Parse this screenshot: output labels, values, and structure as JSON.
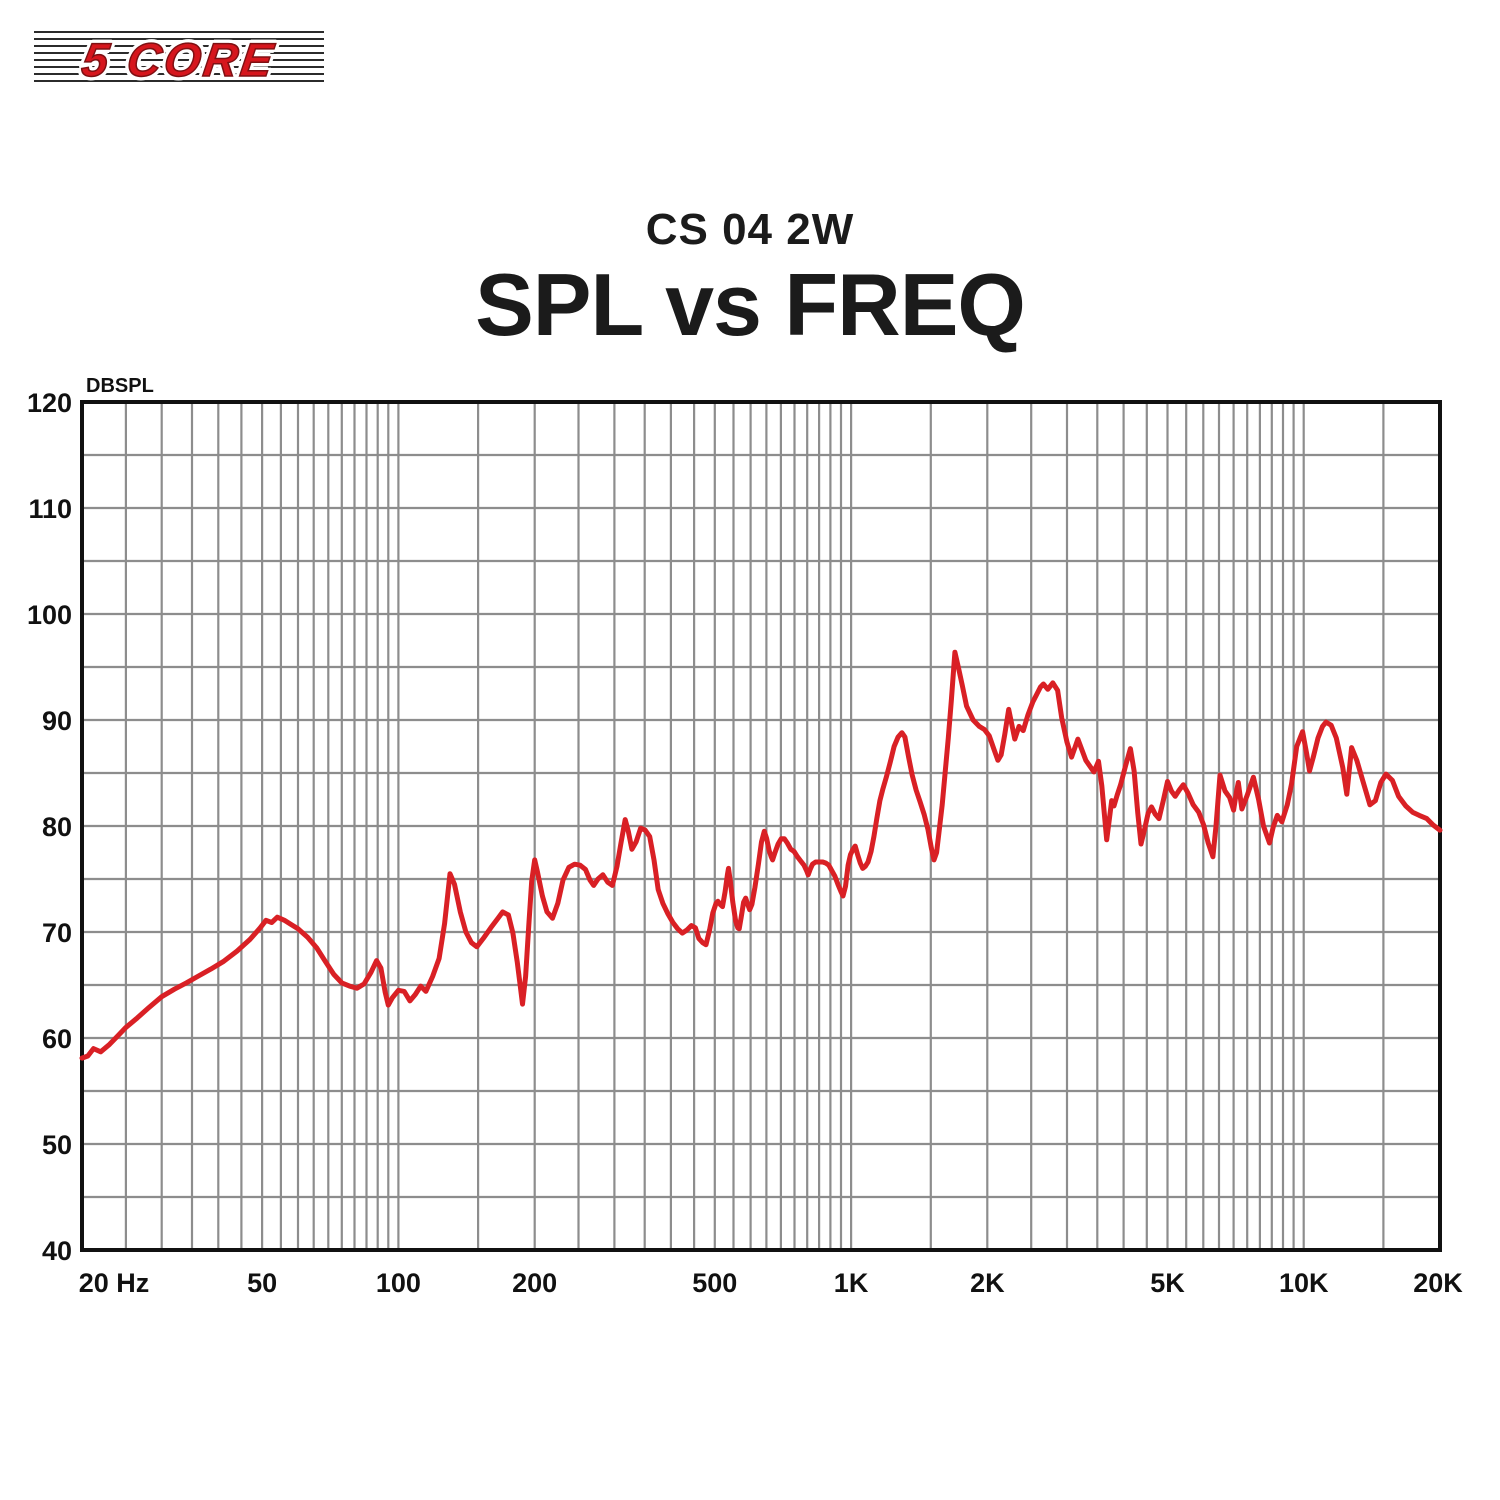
{
  "logo": {
    "text": "5 CORE",
    "color": "#d6161d"
  },
  "header": {
    "model": "CS 04 2W",
    "title": "SPL vs FREQ"
  },
  "chart_data": {
    "type": "line",
    "title": "SPL vs FREQ",
    "subtitle": "CS 04 2W",
    "x_scale": "log",
    "xlim": [
      20,
      20000
    ],
    "ylim": [
      40,
      120
    ],
    "y_axis_label": "DBSPL",
    "grid": true,
    "y_grid_step_db": 5,
    "y_label_step_db": 10,
    "x_minor_grid_rule": "lines at 25..95 step 5, 100, 150..950 step 50, 1000, 1500..9500 step 500, 10000, 15000 Hz",
    "x_ticks": [
      {
        "f": 20,
        "label": "20 Hz"
      },
      {
        "f": 50,
        "label": "50"
      },
      {
        "f": 100,
        "label": "100"
      },
      {
        "f": 200,
        "label": "200"
      },
      {
        "f": 500,
        "label": "500"
      },
      {
        "f": 1000,
        "label": "1K"
      },
      {
        "f": 2000,
        "label": "2K"
      },
      {
        "f": 5000,
        "label": "5K"
      },
      {
        "f": 10000,
        "label": "10K"
      },
      {
        "f": 20000,
        "label": "20K"
      }
    ],
    "y_ticks": [
      120,
      110,
      100,
      90,
      80,
      70,
      60,
      50,
      40
    ],
    "colors": {
      "line": "#d92025",
      "grid": "#8d8d8d",
      "axis": "#111111"
    },
    "series": [
      {
        "name": "SPL (dB) vs Frequency (Hz)",
        "points": [
          [
            20,
            58.1
          ],
          [
            20.6,
            58.3
          ],
          [
            21.2,
            59.0
          ],
          [
            22,
            58.7
          ],
          [
            23,
            59.4
          ],
          [
            24,
            60.2
          ],
          [
            25,
            61.0
          ],
          [
            26.5,
            61.9
          ],
          [
            28,
            62.8
          ],
          [
            30,
            63.9
          ],
          [
            32,
            64.6
          ],
          [
            34,
            65.2
          ],
          [
            36,
            65.8
          ],
          [
            38.5,
            66.5
          ],
          [
            41,
            67.2
          ],
          [
            44,
            68.2
          ],
          [
            47,
            69.3
          ],
          [
            49.5,
            70.4
          ],
          [
            51,
            71.1
          ],
          [
            52.5,
            70.9
          ],
          [
            54,
            71.4
          ],
          [
            56,
            71.1
          ],
          [
            58,
            70.7
          ],
          [
            60,
            70.3
          ],
          [
            63,
            69.5
          ],
          [
            66,
            68.5
          ],
          [
            69,
            67.2
          ],
          [
            72,
            66.0
          ],
          [
            75,
            65.2
          ],
          [
            78,
            64.9
          ],
          [
            81,
            64.7
          ],
          [
            84,
            65.1
          ],
          [
            87,
            66.2
          ],
          [
            89.5,
            67.3
          ],
          [
            91.5,
            66.6
          ],
          [
            93.5,
            64.3
          ],
          [
            95,
            63.1
          ],
          [
            97,
            63.8
          ],
          [
            100,
            64.5
          ],
          [
            103,
            64.4
          ],
          [
            106,
            63.5
          ],
          [
            109,
            64.1
          ],
          [
            112,
            64.9
          ],
          [
            115,
            64.4
          ],
          [
            119,
            65.8
          ],
          [
            123,
            67.5
          ],
          [
            126.5,
            70.8
          ],
          [
            130,
            75.5
          ],
          [
            133,
            74.5
          ],
          [
            137,
            71.9
          ],
          [
            141,
            70.0
          ],
          [
            145,
            69.0
          ],
          [
            149,
            68.6
          ],
          [
            154,
            69.4
          ],
          [
            160,
            70.4
          ],
          [
            166,
            71.3
          ],
          [
            170,
            71.9
          ],
          [
            175,
            71.6
          ],
          [
            179,
            69.9
          ],
          [
            183,
            67.2
          ],
          [
            186,
            64.8
          ],
          [
            188,
            63.2
          ],
          [
            191,
            65.8
          ],
          [
            194,
            70.5
          ],
          [
            197,
            74.8
          ],
          [
            200,
            76.8
          ],
          [
            203,
            75.6
          ],
          [
            208,
            73.4
          ],
          [
            213,
            71.9
          ],
          [
            219,
            71.3
          ],
          [
            225,
            72.7
          ],
          [
            231,
            74.9
          ],
          [
            238,
            76.1
          ],
          [
            245,
            76.4
          ],
          [
            252,
            76.3
          ],
          [
            259,
            75.9
          ],
          [
            265,
            74.9
          ],
          [
            270,
            74.4
          ],
          [
            276,
            75.0
          ],
          [
            283,
            75.4
          ],
          [
            290,
            74.7
          ],
          [
            297,
            74.4
          ],
          [
            304,
            76.2
          ],
          [
            310,
            78.3
          ],
          [
            317,
            80.6
          ],
          [
            322,
            79.5
          ],
          [
            328,
            77.8
          ],
          [
            335,
            78.5
          ],
          [
            343,
            79.8
          ],
          [
            351,
            79.6
          ],
          [
            359,
            79.0
          ],
          [
            367,
            76.8
          ],
          [
            375,
            74.0
          ],
          [
            384,
            72.7
          ],
          [
            394,
            71.7
          ],
          [
            404,
            70.9
          ],
          [
            414,
            70.3
          ],
          [
            424,
            69.9
          ],
          [
            434,
            70.2
          ],
          [
            444,
            70.6
          ],
          [
            453,
            70.4
          ],
          [
            461,
            69.4
          ],
          [
            470,
            69.0
          ],
          [
            478,
            68.8
          ],
          [
            487,
            70.2
          ],
          [
            495,
            71.8
          ],
          [
            503,
            72.7
          ],
          [
            508,
            72.9
          ],
          [
            514,
            72.6
          ],
          [
            520,
            72.4
          ],
          [
            527,
            73.8
          ],
          [
            533,
            75.4
          ],
          [
            536,
            76.0
          ],
          [
            541,
            74.8
          ],
          [
            548,
            72.8
          ],
          [
            556,
            71.0
          ],
          [
            562,
            70.4
          ],
          [
            566,
            70.3
          ],
          [
            572,
            71.4
          ],
          [
            579,
            72.8
          ],
          [
            585,
            73.2
          ],
          [
            591,
            72.6
          ],
          [
            597,
            72.1
          ],
          [
            604,
            72.6
          ],
          [
            613,
            74.2
          ],
          [
            624,
            76.4
          ],
          [
            634,
            78.5
          ],
          [
            643,
            79.5
          ],
          [
            651,
            78.8
          ],
          [
            659,
            77.7
          ],
          [
            666,
            77.1
          ],
          [
            671,
            76.8
          ],
          [
            679,
            77.5
          ],
          [
            690,
            78.3
          ],
          [
            701,
            78.8
          ],
          [
            712,
            78.8
          ],
          [
            723,
            78.4
          ],
          [
            736,
            77.8
          ],
          [
            748,
            77.6
          ],
          [
            761,
            77.1
          ],
          [
            774,
            76.7
          ],
          [
            787,
            76.3
          ],
          [
            797,
            75.8
          ],
          [
            804,
            75.4
          ],
          [
            812,
            75.9
          ],
          [
            822,
            76.4
          ],
          [
            835,
            76.6
          ],
          [
            850,
            76.6
          ],
          [
            866,
            76.6
          ],
          [
            880,
            76.5
          ],
          [
            893,
            76.3
          ],
          [
            906,
            75.8
          ],
          [
            920,
            75.3
          ],
          [
            935,
            74.5
          ],
          [
            950,
            73.8
          ],
          [
            960,
            73.4
          ],
          [
            972,
            74.3
          ],
          [
            985,
            76.3
          ],
          [
            997,
            77.3
          ],
          [
            1010,
            77.8
          ],
          [
            1021,
            78.1
          ],
          [
            1034,
            77.3
          ],
          [
            1048,
            76.5
          ],
          [
            1061,
            76.0
          ],
          [
            1075,
            76.2
          ],
          [
            1090,
            76.6
          ],
          [
            1107,
            77.6
          ],
          [
            1123,
            79.0
          ],
          [
            1140,
            80.7
          ],
          [
            1158,
            82.4
          ],
          [
            1176,
            83.5
          ],
          [
            1196,
            84.6
          ],
          [
            1220,
            86.0
          ],
          [
            1245,
            87.5
          ],
          [
            1270,
            88.4
          ],
          [
            1295,
            88.8
          ],
          [
            1315,
            88.4
          ],
          [
            1340,
            86.5
          ],
          [
            1365,
            84.8
          ],
          [
            1392,
            83.4
          ],
          [
            1420,
            82.3
          ],
          [
            1450,
            81.1
          ],
          [
            1478,
            79.7
          ],
          [
            1505,
            77.9
          ],
          [
            1525,
            76.8
          ],
          [
            1545,
            77.5
          ],
          [
            1565,
            79.5
          ],
          [
            1590,
            82.0
          ],
          [
            1615,
            85.2
          ],
          [
            1640,
            88.3
          ],
          [
            1665,
            91.8
          ],
          [
            1696,
            96.4
          ],
          [
            1725,
            95.0
          ],
          [
            1760,
            93.3
          ],
          [
            1800,
            91.3
          ],
          [
            1860,
            90.0
          ],
          [
            1920,
            89.4
          ],
          [
            1970,
            89.1
          ],
          [
            2020,
            88.5
          ],
          [
            2070,
            87.2
          ],
          [
            2110,
            86.2
          ],
          [
            2145,
            86.7
          ],
          [
            2185,
            88.6
          ],
          [
            2230,
            91.0
          ],
          [
            2270,
            89.4
          ],
          [
            2300,
            88.2
          ],
          [
            2350,
            89.4
          ],
          [
            2400,
            89.0
          ],
          [
            2460,
            90.5
          ],
          [
            2520,
            91.7
          ],
          [
            2570,
            92.4
          ],
          [
            2620,
            93.1
          ],
          [
            2660,
            93.4
          ],
          [
            2720,
            92.9
          ],
          [
            2790,
            93.5
          ],
          [
            2860,
            92.8
          ],
          [
            2920,
            90.2
          ],
          [
            3000,
            87.9
          ],
          [
            3070,
            86.5
          ],
          [
            3170,
            88.2
          ],
          [
            3300,
            86.2
          ],
          [
            3440,
            85.1
          ],
          [
            3520,
            86.1
          ],
          [
            3580,
            83.8
          ],
          [
            3620,
            81.5
          ],
          [
            3670,
            78.7
          ],
          [
            3720,
            80.6
          ],
          [
            3765,
            82.4
          ],
          [
            3810,
            81.9
          ],
          [
            3870,
            82.9
          ],
          [
            3940,
            83.9
          ],
          [
            4040,
            85.7
          ],
          [
            4140,
            87.3
          ],
          [
            4220,
            85.2
          ],
          [
            4300,
            81.2
          ],
          [
            4370,
            78.3
          ],
          [
            4450,
            79.7
          ],
          [
            4530,
            81.2
          ],
          [
            4610,
            81.8
          ],
          [
            4700,
            81.1
          ],
          [
            4790,
            80.7
          ],
          [
            4895,
            82.4
          ],
          [
            5000,
            84.2
          ],
          [
            5100,
            83.3
          ],
          [
            5200,
            82.8
          ],
          [
            5310,
            83.4
          ],
          [
            5420,
            83.9
          ],
          [
            5550,
            83.1
          ],
          [
            5700,
            82.0
          ],
          [
            5860,
            81.3
          ],
          [
            6010,
            80.1
          ],
          [
            6150,
            78.4
          ],
          [
            6300,
            77.1
          ],
          [
            6400,
            80.0
          ],
          [
            6530,
            84.8
          ],
          [
            6700,
            83.3
          ],
          [
            6860,
            82.7
          ],
          [
            7000,
            81.5
          ],
          [
            7100,
            83.2
          ],
          [
            7170,
            84.1
          ],
          [
            7300,
            81.6
          ],
          [
            7500,
            82.9
          ],
          [
            7740,
            84.6
          ],
          [
            7950,
            82.5
          ],
          [
            8150,
            80.0
          ],
          [
            8400,
            78.4
          ],
          [
            8560,
            79.9
          ],
          [
            8740,
            81.0
          ],
          [
            8950,
            80.4
          ],
          [
            9200,
            82.0
          ],
          [
            9400,
            84.0
          ],
          [
            9650,
            87.5
          ],
          [
            9940,
            88.9
          ],
          [
            10150,
            86.8
          ],
          [
            10300,
            85.2
          ],
          [
            10500,
            86.5
          ],
          [
            10750,
            88.3
          ],
          [
            11000,
            89.4
          ],
          [
            11200,
            89.8
          ],
          [
            11500,
            89.5
          ],
          [
            11800,
            88.3
          ],
          [
            12200,
            85.5
          ],
          [
            12450,
            83.0
          ],
          [
            12760,
            87.4
          ],
          [
            13100,
            86.2
          ],
          [
            13500,
            84.3
          ],
          [
            14000,
            82.0
          ],
          [
            14400,
            82.4
          ],
          [
            14800,
            84.1
          ],
          [
            15200,
            84.9
          ],
          [
            15700,
            84.3
          ],
          [
            16200,
            82.8
          ],
          [
            16800,
            81.9
          ],
          [
            17400,
            81.3
          ],
          [
            18000,
            81.0
          ],
          [
            18700,
            80.7
          ],
          [
            19300,
            80.1
          ],
          [
            20000,
            79.6
          ]
        ]
      }
    ]
  }
}
